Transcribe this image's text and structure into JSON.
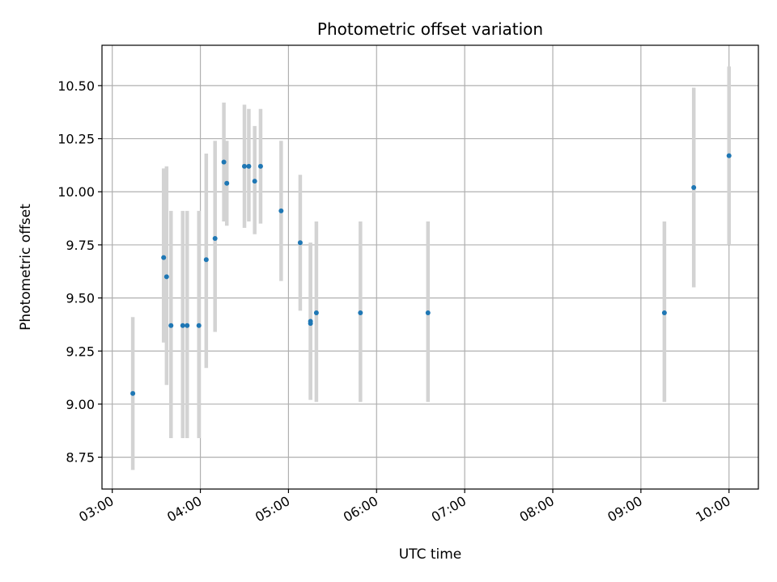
{
  "chart_data": {
    "type": "scatter",
    "title": "Photometric offset variation",
    "xlabel": "UTC time",
    "ylabel": "Photometric offset",
    "x_ticks": [
      "03:00",
      "04:00",
      "05:00",
      "06:00",
      "07:00",
      "08:00",
      "09:00",
      "10:00"
    ],
    "y_ticks": [
      "8.75",
      "9.00",
      "9.25",
      "9.50",
      "9.75",
      "10.00",
      "10.25",
      "10.50"
    ],
    "xlim": [
      "02:53",
      "10:20"
    ],
    "ylim": [
      8.6,
      10.69
    ],
    "grid": true,
    "colors": {
      "points": "#1f77b4",
      "error_bars": "#d3d3d3",
      "grid": "#b0b0b0"
    },
    "points": [
      {
        "x": "03:14",
        "y": 9.05,
        "ylow": 8.69,
        "yhigh": 9.41
      },
      {
        "x": "03:35",
        "y": 9.69,
        "ylow": 9.29,
        "yhigh": 10.11
      },
      {
        "x": "03:37",
        "y": 9.6,
        "ylow": 9.09,
        "yhigh": 10.12
      },
      {
        "x": "03:40",
        "y": 9.37,
        "ylow": 8.84,
        "yhigh": 9.91
      },
      {
        "x": "03:48",
        "y": 9.37,
        "ylow": 8.84,
        "yhigh": 9.91
      },
      {
        "x": "03:51",
        "y": 9.37,
        "ylow": 8.84,
        "yhigh": 9.91
      },
      {
        "x": "03:59",
        "y": 9.37,
        "ylow": 8.84,
        "yhigh": 9.91
      },
      {
        "x": "04:04",
        "y": 9.68,
        "ylow": 9.17,
        "yhigh": 10.18
      },
      {
        "x": "04:10",
        "y": 9.78,
        "ylow": 9.34,
        "yhigh": 10.24
      },
      {
        "x": "04:16",
        "y": 10.14,
        "ylow": 9.86,
        "yhigh": 10.42
      },
      {
        "x": "04:18",
        "y": 10.04,
        "ylow": 9.84,
        "yhigh": 10.24
      },
      {
        "x": "04:30",
        "y": 10.12,
        "ylow": 9.83,
        "yhigh": 10.41
      },
      {
        "x": "04:33",
        "y": 10.12,
        "ylow": 9.86,
        "yhigh": 10.39
      },
      {
        "x": "04:37",
        "y": 10.05,
        "ylow": 9.8,
        "yhigh": 10.31
      },
      {
        "x": "04:41",
        "y": 10.12,
        "ylow": 9.85,
        "yhigh": 10.39
      },
      {
        "x": "04:55",
        "y": 9.91,
        "ylow": 9.58,
        "yhigh": 10.24
      },
      {
        "x": "05:08",
        "y": 9.76,
        "ylow": 9.44,
        "yhigh": 10.08
      },
      {
        "x": "05:15",
        "y": 9.38,
        "ylow": 9.02,
        "yhigh": 9.76
      },
      {
        "x": "05:15",
        "y": 9.39,
        "ylow": 9.02,
        "yhigh": 9.76
      },
      {
        "x": "05:19",
        "y": 9.43,
        "ylow": 9.01,
        "yhigh": 9.86
      },
      {
        "x": "05:49",
        "y": 9.43,
        "ylow": 9.01,
        "yhigh": 9.86
      },
      {
        "x": "06:35",
        "y": 9.43,
        "ylow": 9.01,
        "yhigh": 9.86
      },
      {
        "x": "09:16",
        "y": 9.43,
        "ylow": 9.01,
        "yhigh": 9.86
      },
      {
        "x": "09:36",
        "y": 10.02,
        "ylow": 9.55,
        "yhigh": 10.49
      },
      {
        "x": "10:00",
        "y": 10.17,
        "ylow": 9.75,
        "yhigh": 10.59
      }
    ]
  }
}
